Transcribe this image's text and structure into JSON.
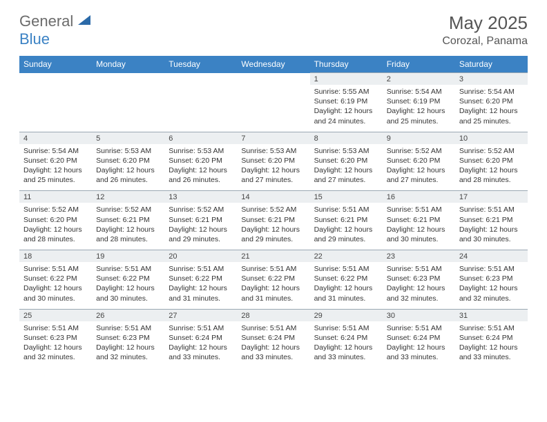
{
  "branding": {
    "logo_text_1": "General",
    "logo_text_2": "Blue",
    "logo_text_1_color": "#6b6b6b",
    "logo_text_2_color": "#3b82c4",
    "shape_color": "#2b6aa8"
  },
  "header": {
    "title": "May 2025",
    "location": "Corozal, Panama",
    "title_fontsize": 26,
    "location_fontsize": 16,
    "text_color": "#555555"
  },
  "calendar": {
    "header_bg": "#3b82c4",
    "header_text_color": "#ffffff",
    "daynum_bg": "#eceff1",
    "daynum_border": "#9aa8b3",
    "body_text_color": "#333333",
    "daynum_text_color": "#444444",
    "header_fontsize": 12,
    "cell_fontsize": 10.5,
    "daynum_fontsize": 11,
    "days_of_week": [
      "Sunday",
      "Monday",
      "Tuesday",
      "Wednesday",
      "Thursday",
      "Friday",
      "Saturday"
    ],
    "weeks": [
      {
        "nums": [
          "",
          "",
          "",
          "",
          "1",
          "2",
          "3"
        ],
        "cells": [
          {},
          {},
          {},
          {},
          {
            "sunrise": "Sunrise: 5:55 AM",
            "sunset": "Sunset: 6:19 PM",
            "daylight": "Daylight: 12 hours and 24 minutes."
          },
          {
            "sunrise": "Sunrise: 5:54 AM",
            "sunset": "Sunset: 6:19 PM",
            "daylight": "Daylight: 12 hours and 25 minutes."
          },
          {
            "sunrise": "Sunrise: 5:54 AM",
            "sunset": "Sunset: 6:20 PM",
            "daylight": "Daylight: 12 hours and 25 minutes."
          }
        ]
      },
      {
        "nums": [
          "4",
          "5",
          "6",
          "7",
          "8",
          "9",
          "10"
        ],
        "cells": [
          {
            "sunrise": "Sunrise: 5:54 AM",
            "sunset": "Sunset: 6:20 PM",
            "daylight": "Daylight: 12 hours and 25 minutes."
          },
          {
            "sunrise": "Sunrise: 5:53 AM",
            "sunset": "Sunset: 6:20 PM",
            "daylight": "Daylight: 12 hours and 26 minutes."
          },
          {
            "sunrise": "Sunrise: 5:53 AM",
            "sunset": "Sunset: 6:20 PM",
            "daylight": "Daylight: 12 hours and 26 minutes."
          },
          {
            "sunrise": "Sunrise: 5:53 AM",
            "sunset": "Sunset: 6:20 PM",
            "daylight": "Daylight: 12 hours and 27 minutes."
          },
          {
            "sunrise": "Sunrise: 5:53 AM",
            "sunset": "Sunset: 6:20 PM",
            "daylight": "Daylight: 12 hours and 27 minutes."
          },
          {
            "sunrise": "Sunrise: 5:52 AM",
            "sunset": "Sunset: 6:20 PM",
            "daylight": "Daylight: 12 hours and 27 minutes."
          },
          {
            "sunrise": "Sunrise: 5:52 AM",
            "sunset": "Sunset: 6:20 PM",
            "daylight": "Daylight: 12 hours and 28 minutes."
          }
        ]
      },
      {
        "nums": [
          "11",
          "12",
          "13",
          "14",
          "15",
          "16",
          "17"
        ],
        "cells": [
          {
            "sunrise": "Sunrise: 5:52 AM",
            "sunset": "Sunset: 6:20 PM",
            "daylight": "Daylight: 12 hours and 28 minutes."
          },
          {
            "sunrise": "Sunrise: 5:52 AM",
            "sunset": "Sunset: 6:21 PM",
            "daylight": "Daylight: 12 hours and 28 minutes."
          },
          {
            "sunrise": "Sunrise: 5:52 AM",
            "sunset": "Sunset: 6:21 PM",
            "daylight": "Daylight: 12 hours and 29 minutes."
          },
          {
            "sunrise": "Sunrise: 5:52 AM",
            "sunset": "Sunset: 6:21 PM",
            "daylight": "Daylight: 12 hours and 29 minutes."
          },
          {
            "sunrise": "Sunrise: 5:51 AM",
            "sunset": "Sunset: 6:21 PM",
            "daylight": "Daylight: 12 hours and 29 minutes."
          },
          {
            "sunrise": "Sunrise: 5:51 AM",
            "sunset": "Sunset: 6:21 PM",
            "daylight": "Daylight: 12 hours and 30 minutes."
          },
          {
            "sunrise": "Sunrise: 5:51 AM",
            "sunset": "Sunset: 6:21 PM",
            "daylight": "Daylight: 12 hours and 30 minutes."
          }
        ]
      },
      {
        "nums": [
          "18",
          "19",
          "20",
          "21",
          "22",
          "23",
          "24"
        ],
        "cells": [
          {
            "sunrise": "Sunrise: 5:51 AM",
            "sunset": "Sunset: 6:22 PM",
            "daylight": "Daylight: 12 hours and 30 minutes."
          },
          {
            "sunrise": "Sunrise: 5:51 AM",
            "sunset": "Sunset: 6:22 PM",
            "daylight": "Daylight: 12 hours and 30 minutes."
          },
          {
            "sunrise": "Sunrise: 5:51 AM",
            "sunset": "Sunset: 6:22 PM",
            "daylight": "Daylight: 12 hours and 31 minutes."
          },
          {
            "sunrise": "Sunrise: 5:51 AM",
            "sunset": "Sunset: 6:22 PM",
            "daylight": "Daylight: 12 hours and 31 minutes."
          },
          {
            "sunrise": "Sunrise: 5:51 AM",
            "sunset": "Sunset: 6:22 PM",
            "daylight": "Daylight: 12 hours and 31 minutes."
          },
          {
            "sunrise": "Sunrise: 5:51 AM",
            "sunset": "Sunset: 6:23 PM",
            "daylight": "Daylight: 12 hours and 32 minutes."
          },
          {
            "sunrise": "Sunrise: 5:51 AM",
            "sunset": "Sunset: 6:23 PM",
            "daylight": "Daylight: 12 hours and 32 minutes."
          }
        ]
      },
      {
        "nums": [
          "25",
          "26",
          "27",
          "28",
          "29",
          "30",
          "31"
        ],
        "cells": [
          {
            "sunrise": "Sunrise: 5:51 AM",
            "sunset": "Sunset: 6:23 PM",
            "daylight": "Daylight: 12 hours and 32 minutes."
          },
          {
            "sunrise": "Sunrise: 5:51 AM",
            "sunset": "Sunset: 6:23 PM",
            "daylight": "Daylight: 12 hours and 32 minutes."
          },
          {
            "sunrise": "Sunrise: 5:51 AM",
            "sunset": "Sunset: 6:24 PM",
            "daylight": "Daylight: 12 hours and 33 minutes."
          },
          {
            "sunrise": "Sunrise: 5:51 AM",
            "sunset": "Sunset: 6:24 PM",
            "daylight": "Daylight: 12 hours and 33 minutes."
          },
          {
            "sunrise": "Sunrise: 5:51 AM",
            "sunset": "Sunset: 6:24 PM",
            "daylight": "Daylight: 12 hours and 33 minutes."
          },
          {
            "sunrise": "Sunrise: 5:51 AM",
            "sunset": "Sunset: 6:24 PM",
            "daylight": "Daylight: 12 hours and 33 minutes."
          },
          {
            "sunrise": "Sunrise: 5:51 AM",
            "sunset": "Sunset: 6:24 PM",
            "daylight": "Daylight: 12 hours and 33 minutes."
          }
        ]
      }
    ]
  }
}
